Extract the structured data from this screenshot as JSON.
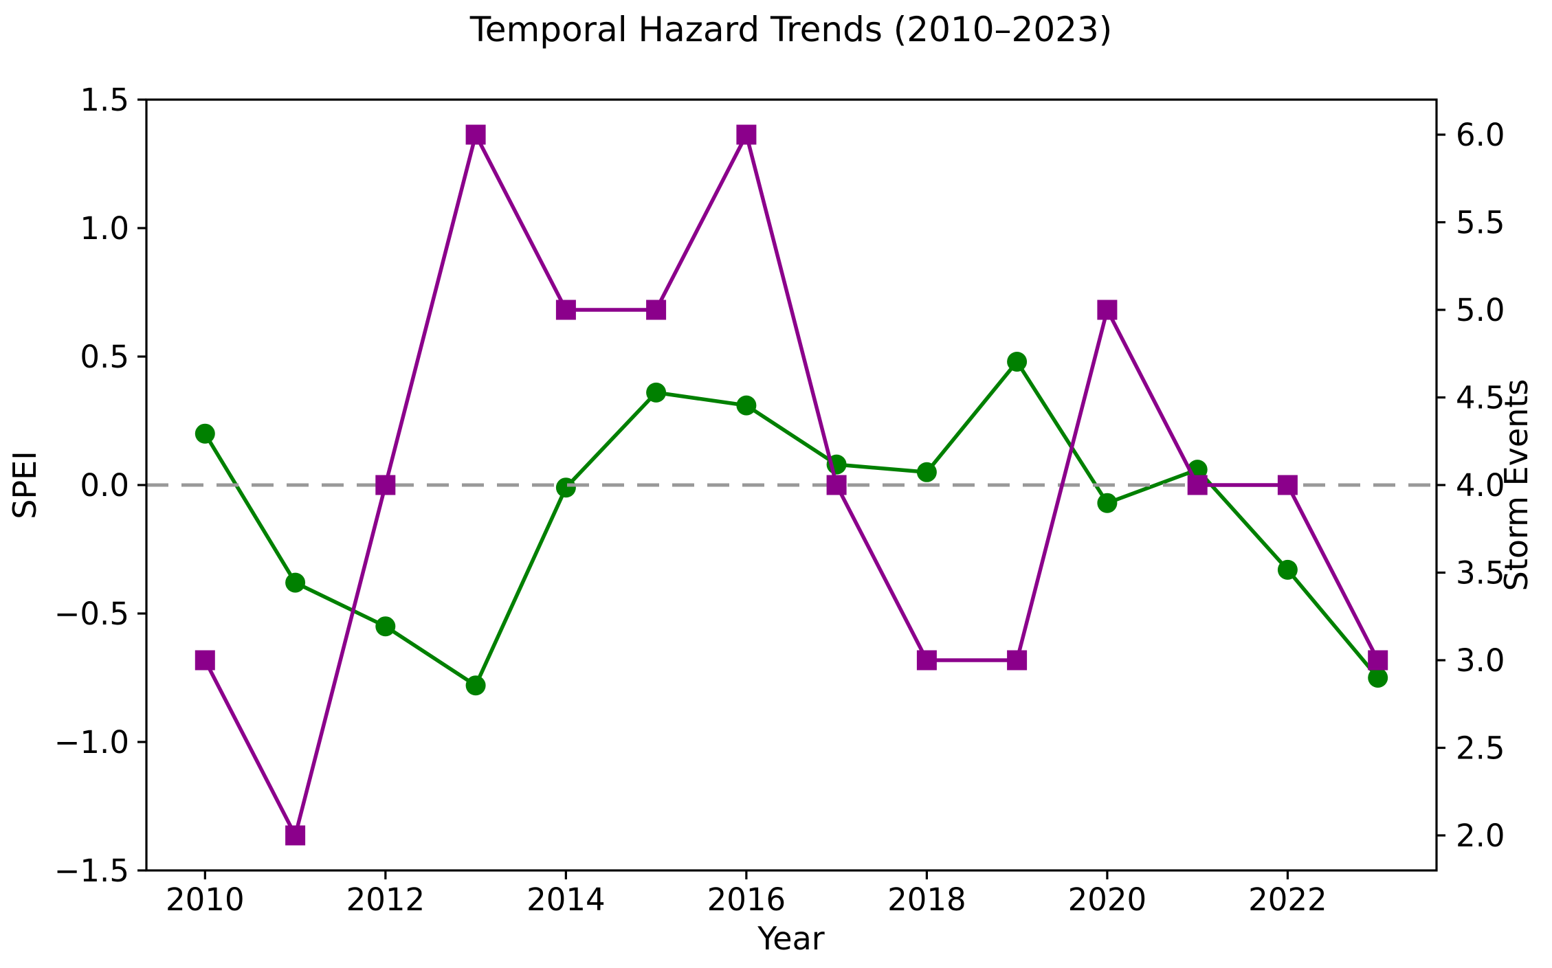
{
  "figure": {
    "background": "#ffffff"
  },
  "chart_data": {
    "type": "line",
    "title": "Temporal Hazard Trends (2010–2023)",
    "xlabel": "Year",
    "grid": false,
    "legend": null,
    "x": [
      2010,
      2011,
      2012,
      2013,
      2014,
      2015,
      2016,
      2017,
      2018,
      2019,
      2020,
      2021,
      2022,
      2023
    ],
    "xlim": [
      2009.35,
      2023.65
    ],
    "xticks": [
      2010,
      2012,
      2014,
      2016,
      2018,
      2020,
      2022
    ],
    "xtick_labels": [
      "2010",
      "2012",
      "2014",
      "2016",
      "2018",
      "2020",
      "2022"
    ],
    "left_axis": {
      "label": "SPEI",
      "lim": [
        -1.5,
        1.5
      ],
      "ticks": [
        1.5,
        1.0,
        0.5,
        0.0,
        -0.5,
        -1.0,
        -1.5
      ],
      "tick_labels": [
        "1.5",
        "1.0",
        "0.5",
        "0.0",
        "−0.5",
        "−1.0",
        "−1.5"
      ]
    },
    "right_axis": {
      "label": "Storm Events",
      "lim": [
        1.8,
        6.2
      ],
      "ticks": [
        6.0,
        5.5,
        5.0,
        4.5,
        4.0,
        3.5,
        3.0,
        2.5,
        2.0
      ],
      "tick_labels": [
        "6.0",
        "5.5",
        "5.0",
        "4.5",
        "4.0",
        "3.5",
        "3.0",
        "2.5",
        "2.0"
      ]
    },
    "series": [
      {
        "name": "SPEI",
        "axis": "left",
        "color": "#008000",
        "marker": "circle",
        "values": [
          0.2,
          -0.38,
          -0.55,
          -0.78,
          -0.01,
          0.36,
          0.31,
          0.08,
          0.05,
          0.48,
          -0.07,
          0.06,
          -0.33,
          -0.75
        ]
      },
      {
        "name": "Storm Events",
        "axis": "right",
        "color": "#8B008B",
        "marker": "square",
        "values": [
          3,
          2,
          4,
          6,
          5,
          5,
          6,
          4,
          3,
          3,
          5,
          4,
          4,
          3
        ]
      }
    ],
    "reference_line": {
      "value_left_axis": 0.0,
      "style": "dashed",
      "color": "#999999"
    },
    "frame_color": "#000000"
  }
}
